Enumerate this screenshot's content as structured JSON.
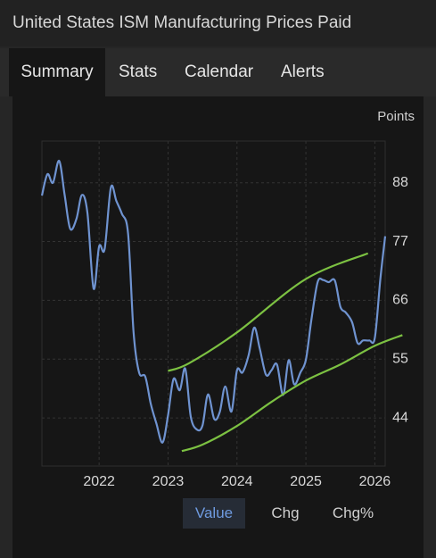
{
  "header": {
    "title": "United States ISM Manufacturing Prices Paid"
  },
  "tabs": [
    {
      "label": "Summary",
      "active": true
    },
    {
      "label": "Stats",
      "active": false
    },
    {
      "label": "Calendar",
      "active": false
    },
    {
      "label": "Alerts",
      "active": false
    }
  ],
  "buttons": [
    {
      "label": "Value",
      "active": true
    },
    {
      "label": "Chg",
      "active": false
    },
    {
      "label": "Chg%",
      "active": false
    }
  ],
  "chart_data": {
    "type": "line",
    "y_axis_label": "Points",
    "grid": true,
    "xlim": [
      2021.17,
      2026.15
    ],
    "xticks": [
      2022,
      2023,
      2024,
      2025,
      2026
    ],
    "ylim": [
      35,
      95.8
    ],
    "yticks": [
      44,
      55,
      66,
      77,
      88
    ],
    "series": [
      {
        "name": "Value",
        "color": "#6f93d0",
        "x": [
          2021.17,
          2021.25,
          2021.33,
          2021.42,
          2021.5,
          2021.58,
          2021.67,
          2021.75,
          2021.83,
          2021.92,
          2022,
          2022.08,
          2022.17,
          2022.25,
          2022.33,
          2022.42,
          2022.5,
          2022.58,
          2022.67,
          2022.75,
          2022.83,
          2022.92,
          2023,
          2023.08,
          2023.17,
          2023.25,
          2023.33,
          2023.42,
          2023.5,
          2023.58,
          2023.67,
          2023.75,
          2023.83,
          2023.92,
          2024,
          2024.08,
          2024.17,
          2024.25,
          2024.33,
          2024.42,
          2024.5,
          2024.58,
          2024.67,
          2024.75,
          2024.83,
          2024.92,
          2025,
          2025.08,
          2025.17,
          2025.25,
          2025.33,
          2025.42,
          2025.5,
          2025.58,
          2025.67,
          2025.75,
          2025.83,
          2025.92,
          2026,
          2026.08,
          2026.15
        ],
        "values": [
          85.6,
          89.6,
          88,
          92.1,
          85.7,
          79.4,
          81.2,
          85.7,
          82.4,
          68.2,
          76.1,
          75.6,
          87.1,
          84.6,
          82.2,
          78.5,
          60,
          52.5,
          51.7,
          46.6,
          43,
          39.4,
          44.5,
          51.3,
          49.2,
          53.2,
          44.2,
          41.8,
          42.6,
          48.4,
          43.8,
          45.1,
          49.9,
          45.2,
          52.9,
          52.5,
          55.8,
          60.9,
          57,
          52.1,
          52.9,
          54,
          48.3,
          54.8,
          50.3,
          52.5,
          54.9,
          62.4,
          69.4,
          69.8,
          69.4,
          69.7,
          64.8,
          63.7,
          61.9,
          58,
          58.5,
          58.5,
          59,
          70,
          78
        ]
      },
      {
        "name": "Upper band",
        "color": "#7cc142",
        "x": [
          2023,
          2023.3,
          2024,
          2025,
          2025.9
        ],
        "values": [
          52.8,
          54.2,
          60,
          70,
          74.8
        ]
      },
      {
        "name": "Lower band",
        "color": "#7cc142",
        "x": [
          2023.2,
          2023.5,
          2024,
          2024.5,
          2025,
          2025.5,
          2026,
          2026.4
        ],
        "values": [
          37.8,
          39,
          42.5,
          47,
          51,
          54,
          57.5,
          59.5
        ]
      }
    ]
  }
}
